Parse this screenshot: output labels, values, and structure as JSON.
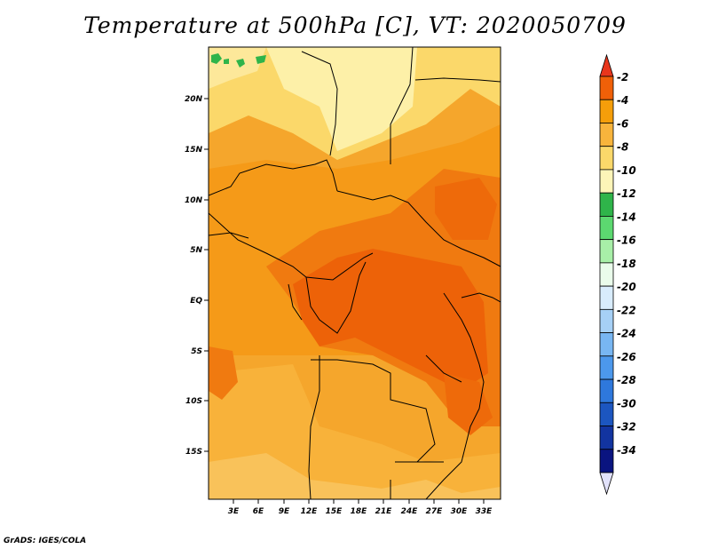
{
  "title": "Temperature at 500hPa [C], VT: 2020050709",
  "credit": "GrADS: IGES/COLA",
  "map": {
    "lat_labels": [
      "20N",
      "15N",
      "10N",
      "5N",
      "EQ",
      "5S",
      "10S",
      "15S"
    ],
    "lon_labels": [
      "3E",
      "6E",
      "9E",
      "12E",
      "15E",
      "18E",
      "21E",
      "24E",
      "27E",
      "30E",
      "33E"
    ]
  },
  "legend": {
    "labels": [
      "-2",
      "-4",
      "-6",
      "-8",
      "-10",
      "-12",
      "-14",
      "-16",
      "-18",
      "-20",
      "-22",
      "-24",
      "-26",
      "-28",
      "-30",
      "-32",
      "-34"
    ],
    "colors": [
      "#e8361c",
      "#f06008",
      "#f59e0a",
      "#f8b43c",
      "#fbd86a",
      "#fdf5b8",
      "#2fb44a",
      "#5cd870",
      "#a8efa8",
      "#eafceb",
      "#d8ecfc",
      "#a6d0f6",
      "#78b6f2",
      "#4c98ec",
      "#2e78dc",
      "#1c56c0",
      "#1234a0",
      "#0a1480",
      "#e2e2fb"
    ]
  }
}
